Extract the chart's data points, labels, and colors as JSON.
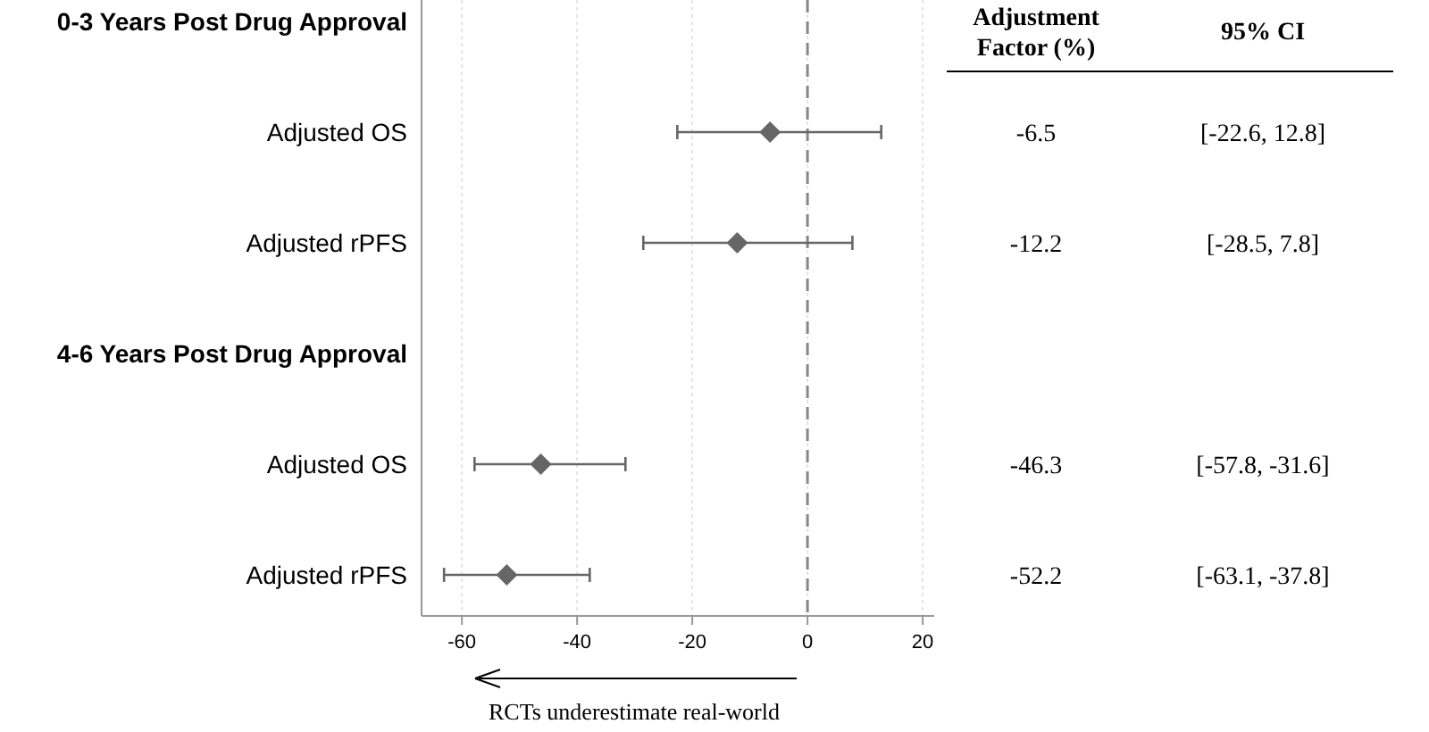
{
  "chart_data": {
    "type": "scatter",
    "orientation": "horizontal",
    "categories": [
      "0-3 Years Post Drug Approval",
      "Adjusted OS",
      "Adjusted rPFS",
      "4-6 Years Post Drug Approval",
      "Adjusted OS",
      "Adjusted rPFS"
    ],
    "values": [
      null,
      -6.5,
      -12.2,
      null,
      -46.3,
      -52.2
    ],
    "errors": [
      null,
      [
        -22.6,
        12.8
      ],
      [
        -28.5,
        7.8
      ],
      null,
      [
        -57.8,
        -31.6
      ],
      [
        -63.1,
        -37.8
      ]
    ],
    "color": "#666666",
    "marker": "diamond",
    "data_labels": true,
    "xlim": [
      -67,
      22
    ],
    "xticks": [
      -60,
      -40,
      -20,
      0,
      20
    ],
    "grid": "x",
    "ref_lines": [
      {
        "axis": "x",
        "value": 0,
        "line_style": "dashed",
        "color": "#888888"
      }
    ],
    "annotations": [
      "Adjustment Factor (%)",
      "95% CI",
      "RCTs underestimate real-world",
      "[-22.6, 12.8]",
      "[-28.5, 7.8]",
      "[-57.8, -31.6]",
      "[-63.1, -37.8]"
    ]
  }
}
